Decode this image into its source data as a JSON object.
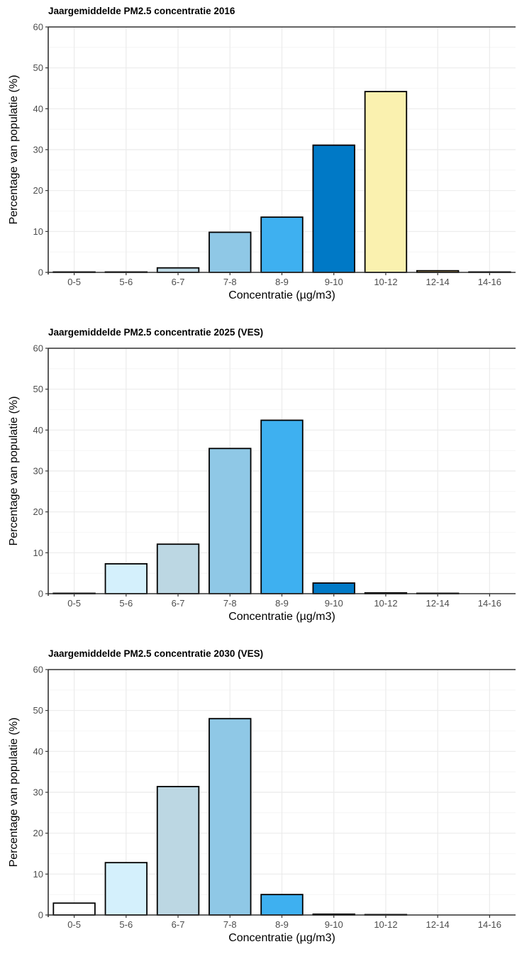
{
  "chart_data": [
    {
      "type": "bar",
      "title": "Jaargemiddelde PM2.5 concentratie 2016",
      "xlabel": "Concentratie (µg/m3)",
      "ylabel": "Percentage van populatie (%)",
      "ylim": [
        0,
        60
      ],
      "yticks": [
        0,
        10,
        20,
        30,
        40,
        50,
        60
      ],
      "grid": true,
      "categories": [
        "0-5",
        "5-6",
        "6-7",
        "7-8",
        "8-9",
        "9-10",
        "10-12",
        "12-14",
        "14-16"
      ],
      "values": [
        0.1,
        0.1,
        1.1,
        9.8,
        13.5,
        31.1,
        44.2,
        0.4,
        0.1
      ]
    },
    {
      "type": "bar",
      "title": "Jaargemiddelde PM2.5 concentratie 2025 (VES)",
      "xlabel": "Concentratie (µg/m3)",
      "ylabel": "Percentage van populatie (%)",
      "ylim": [
        0,
        60
      ],
      "yticks": [
        0,
        10,
        20,
        30,
        40,
        50,
        60
      ],
      "grid": true,
      "categories": [
        "0-5",
        "5-6",
        "6-7",
        "7-8",
        "8-9",
        "9-10",
        "10-12",
        "12-14",
        "14-16"
      ],
      "values": [
        0.1,
        7.3,
        12.1,
        35.5,
        42.4,
        2.6,
        0.2,
        0.1,
        0.0
      ]
    },
    {
      "type": "bar",
      "title": "Jaargemiddelde PM2.5 concentratie 2030 (VES)",
      "xlabel": "Concentratie (µg/m3)",
      "ylabel": "Percentage van populatie (%)",
      "ylim": [
        0,
        60
      ],
      "yticks": [
        0,
        10,
        20,
        30,
        40,
        50,
        60
      ],
      "grid": true,
      "categories": [
        "0-5",
        "5-6",
        "6-7",
        "7-8",
        "8-9",
        "9-10",
        "10-12",
        "12-14",
        "14-16"
      ],
      "values": [
        2.9,
        12.8,
        31.4,
        48.0,
        5.0,
        0.2,
        0.1,
        0.0,
        0.0
      ]
    }
  ],
  "bin_colors": [
    "#ffffff",
    "#d4f0fc",
    "#bcd7e3",
    "#8fc8e6",
    "#3eb0f0",
    "#0079c6",
    "#faf1af",
    "#e8c06b",
    "#c98a3a"
  ]
}
